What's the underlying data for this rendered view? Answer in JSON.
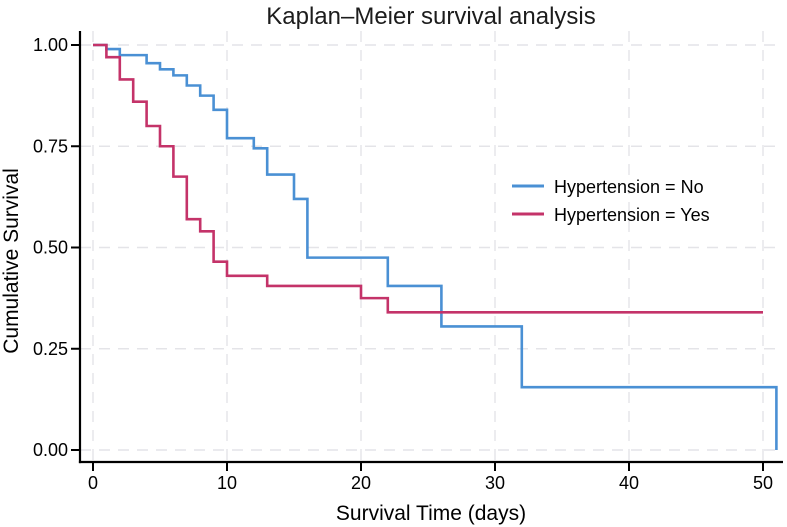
{
  "chart_data": {
    "type": "line",
    "subtype": "kaplan-meier-step",
    "title": "Kaplan–Meier survival analysis",
    "xlabel": "Survival Time (days)",
    "ylabel": "Cumulative Survival",
    "xlim": [
      0,
      51.5
    ],
    "ylim": [
      0,
      1
    ],
    "grid": "dashed-both-directions",
    "axis_color": "#000000",
    "grid_color": "#e4e4e8",
    "legend_position": "middle-right",
    "x_ticks": {
      "values": [
        0,
        10,
        20,
        30,
        40,
        50
      ],
      "labels": [
        "0",
        "10",
        "20",
        "30",
        "40",
        "50"
      ]
    },
    "y_ticks": {
      "values": [
        0,
        0.25,
        0.5,
        0.75,
        1.0
      ],
      "labels": [
        "0.00",
        "0.25",
        "0.50",
        "0.75",
        "1.00"
      ]
    },
    "series": [
      {
        "name": "Hypertension = No",
        "color": "#4a90d4",
        "steps": [
          [
            0,
            1.0
          ],
          [
            1,
            0.99
          ],
          [
            2,
            0.975
          ],
          [
            4,
            0.955
          ],
          [
            5,
            0.94
          ],
          [
            6,
            0.925
          ],
          [
            7,
            0.9
          ],
          [
            8,
            0.875
          ],
          [
            9,
            0.84
          ],
          [
            10,
            0.77
          ],
          [
            12,
            0.745
          ],
          [
            13,
            0.68
          ],
          [
            15,
            0.62
          ],
          [
            16,
            0.475
          ],
          [
            22,
            0.405
          ],
          [
            26,
            0.305
          ],
          [
            32,
            0.155
          ],
          [
            51,
            0.155
          ],
          [
            51,
            0.0
          ]
        ]
      },
      {
        "name": "Hypertension = Yes",
        "color": "#c43369",
        "steps": [
          [
            0,
            1.0
          ],
          [
            1,
            0.97
          ],
          [
            2,
            0.915
          ],
          [
            3,
            0.86
          ],
          [
            4,
            0.8
          ],
          [
            5,
            0.75
          ],
          [
            6,
            0.675
          ],
          [
            7,
            0.57
          ],
          [
            8,
            0.54
          ],
          [
            9,
            0.465
          ],
          [
            10,
            0.43
          ],
          [
            13,
            0.405
          ],
          [
            20,
            0.375
          ],
          [
            22,
            0.34
          ],
          [
            50,
            0.34
          ]
        ]
      }
    ]
  }
}
